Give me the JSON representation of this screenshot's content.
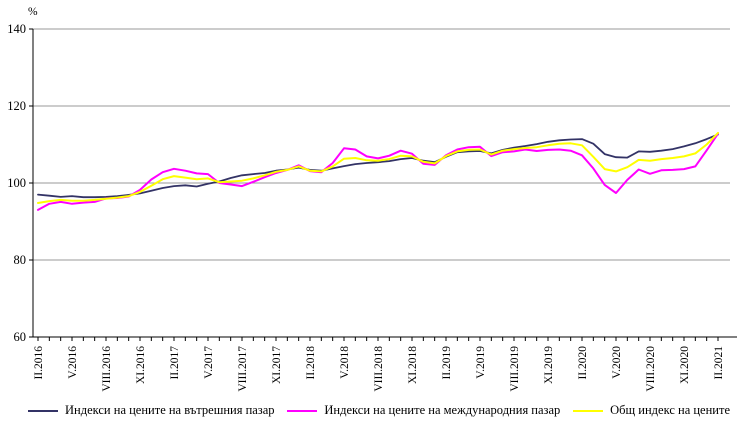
{
  "chart_data": {
    "type": "line",
    "title": "",
    "unit_label": "%",
    "xlabel": "",
    "ylabel": "%",
    "ylim": [
      60,
      140
    ],
    "y_ticks": [
      60,
      80,
      100,
      120,
      140
    ],
    "grid": "horizontal-gridlines-on",
    "legend_position": "bottom",
    "months_between_labels": 3,
    "x_tick_labels": [
      "II.2016",
      "V.2016",
      "VIII.2016",
      "XI.2016",
      "II.2017",
      "V.2017",
      "VIII.2017",
      "XI.2017",
      "II.2018",
      "V.2018",
      "VIII.2018",
      "XI.2018",
      "II.2019",
      "V.2019",
      "VIII.2019",
      "XI.2019",
      "II.2020",
      "V.2020",
      "VIII.2020",
      "XI.2020",
      "II.2021"
    ],
    "colors": {
      "domestic": "#333366",
      "international": "#FF00FF",
      "overall": "#FFFF00",
      "gridline": "#9a9a9a",
      "axis": "#000000"
    },
    "series": [
      {
        "name": "Индекси на цените на вътрешния пазар",
        "color": "#333366",
        "values": [
          97.0,
          96.7,
          96.4,
          96.6,
          96.3,
          96.3,
          96.4,
          96.6,
          96.9,
          97.3,
          98.0,
          98.7,
          99.2,
          99.4,
          99.1,
          99.8,
          100.4,
          101.3,
          102.0,
          102.3,
          102.6,
          103.2,
          103.5,
          104.0,
          103.4,
          103.2,
          103.8,
          104.4,
          104.9,
          105.2,
          105.4,
          105.7,
          106.2,
          106.5,
          105.8,
          105.4,
          106.8,
          108.0,
          108.2,
          108.3,
          107.7,
          108.6,
          109.2,
          109.6,
          110.1,
          110.7,
          111.1,
          111.3,
          111.4,
          110.2,
          107.5,
          106.7,
          106.6,
          108.2,
          108.1,
          108.4,
          108.8,
          109.5,
          110.3,
          111.4,
          112.6
        ]
      },
      {
        "name": "Индекси на цените на международния пазар",
        "color": "#FF00FF",
        "values": [
          93.0,
          94.6,
          95.1,
          94.6,
          94.9,
          95.1,
          96.0,
          96.1,
          96.5,
          98.2,
          100.9,
          102.8,
          103.7,
          103.2,
          102.5,
          102.3,
          100.0,
          99.6,
          99.2,
          100.3,
          101.5,
          102.6,
          103.4,
          104.6,
          103.1,
          102.8,
          105.2,
          109.0,
          108.7,
          106.9,
          106.4,
          107.1,
          108.4,
          107.6,
          105.0,
          104.7,
          107.2,
          108.7,
          109.3,
          109.4,
          107.0,
          108.0,
          108.2,
          108.7,
          108.3,
          108.6,
          108.7,
          108.4,
          107.2,
          103.8,
          99.5,
          97.4,
          100.8,
          103.5,
          102.4,
          103.3,
          103.4,
          103.6,
          104.3,
          108.5,
          112.8
        ]
      },
      {
        "name": "Общ индекс на цените",
        "color": "#FFFF00",
        "values": [
          94.8,
          95.3,
          95.6,
          95.4,
          95.4,
          95.6,
          95.9,
          96.2,
          96.6,
          97.7,
          99.3,
          101.0,
          101.8,
          101.4,
          101.0,
          101.2,
          100.2,
          100.4,
          100.6,
          101.2,
          102.0,
          102.9,
          103.4,
          104.3,
          103.2,
          103.0,
          104.3,
          106.3,
          106.5,
          105.9,
          105.8,
          106.2,
          107.1,
          106.9,
          105.5,
          105.1,
          107.0,
          108.2,
          108.6,
          108.7,
          107.4,
          108.4,
          108.8,
          109.1,
          109.3,
          109.8,
          110.2,
          110.3,
          109.8,
          106.8,
          103.6,
          103.0,
          104.1,
          106.0,
          105.8,
          106.2,
          106.5,
          106.9,
          107.7,
          110.0,
          113.0
        ]
      }
    ]
  }
}
